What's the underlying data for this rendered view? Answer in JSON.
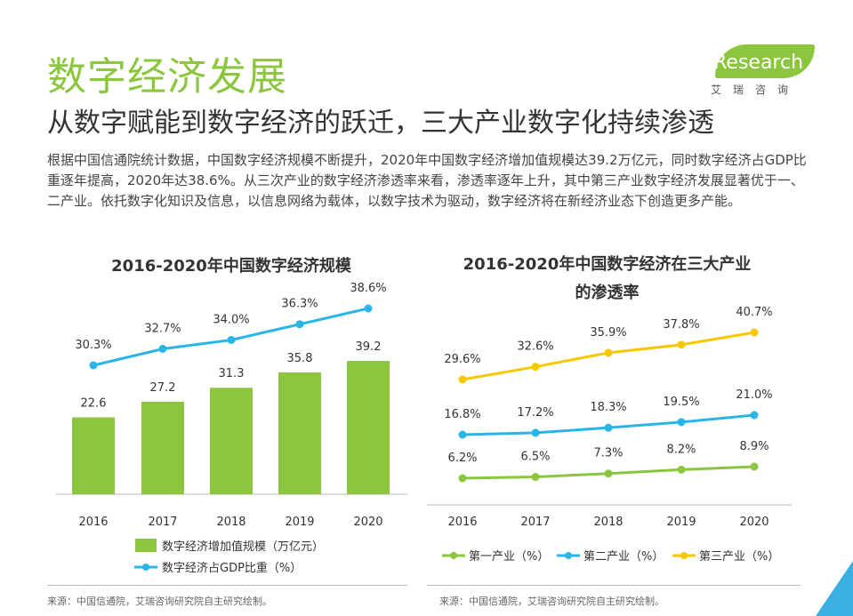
{
  "header": {
    "title": "数字经济发展",
    "subtitle": "从数字赋能到数字经济的跃迁，三大产业数字化持续渗透",
    "intro": "根据中国信通院统计数据，中国数字经济规模不断提升，2020年中国数字经济增加值规模达39.2万亿元，同时数字经济占GDP比重逐年提高，2020年达38.6%。从三次产业的数字经济渗透率来看，渗透率逐年上升，其中第三产业数字经济发展显著优于一、二产业。依托数字化知识及信息，以信息网络为载体，以数字技术为驱动，数字经济将在新经济业态下创造更多产能。"
  },
  "logo": {
    "text": "iResearch",
    "sub": "艾瑞咨询"
  },
  "sources": {
    "left": "来源：中国信通院，艾瑞咨询研究院自主研究绘制。",
    "right": "来源：中国信通院，艾瑞咨询研究院自主研究绘制。"
  },
  "colors": {
    "green": "#8cc63f",
    "blue": "#2ab5e8",
    "yellow": "#f6c800"
  },
  "chart_data": [
    {
      "type": "bar",
      "title": "2016-2020年中国数字经济规模",
      "categories": [
        "2016",
        "2017",
        "2018",
        "2019",
        "2020"
      ],
      "series": [
        {
          "name": "数字经济增加值规模（万亿元）",
          "type": "bar",
          "values": [
            22.6,
            27.2,
            31.3,
            35.8,
            39.2
          ],
          "labels": [
            "22.6",
            "27.2",
            "31.3",
            "35.8",
            "39.2"
          ]
        },
        {
          "name": "数字经济占GDP比重（%）",
          "type": "line",
          "values": [
            30.3,
            32.7,
            34.0,
            36.3,
            38.6
          ],
          "labels": [
            "30.3%",
            "32.7%",
            "34.0%",
            "36.3%",
            "38.6%"
          ]
        }
      ],
      "ylim": [
        0,
        45
      ],
      "legend": "bottom"
    },
    {
      "type": "line",
      "title": "2016-2020年中国数字经济在三大产业",
      "title_line2": "的渗透率",
      "categories": [
        "2016",
        "2017",
        "2018",
        "2019",
        "2020"
      ],
      "series": [
        {
          "name": "第一产业（%）",
          "values": [
            6.2,
            6.5,
            7.3,
            8.2,
            8.9
          ],
          "labels": [
            "6.2%",
            "6.5%",
            "7.3%",
            "8.2%",
            "8.9%"
          ]
        },
        {
          "name": "第二产业（%）",
          "values": [
            16.8,
            17.2,
            18.3,
            19.5,
            21.0
          ],
          "labels": [
            "16.8%",
            "17.2%",
            "18.3%",
            "19.5%",
            "21.0%"
          ]
        },
        {
          "name": "第三产业（%）",
          "values": [
            29.6,
            32.6,
            35.9,
            37.8,
            40.7
          ],
          "labels": [
            "29.6%",
            "32.6%",
            "35.9%",
            "37.8%",
            "40.7%"
          ]
        }
      ],
      "legend": "bottom"
    }
  ]
}
